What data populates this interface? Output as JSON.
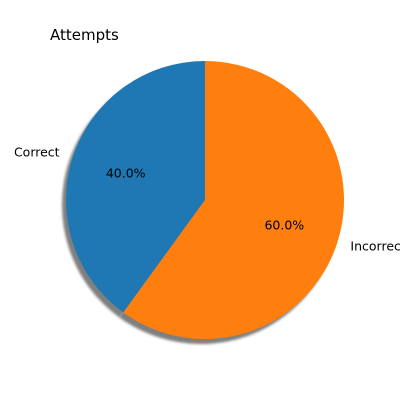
{
  "chart_data": {
    "type": "pie",
    "title": "Attempts",
    "categories": [
      "Correct",
      "Incorrect"
    ],
    "values": [
      40.0,
      60.0
    ],
    "percent_labels": [
      "40.0%",
      "60.0%"
    ],
    "colors": [
      "#1f77b4",
      "#ff7f0e"
    ],
    "start_angle_deg": 90,
    "direction": "counterclockwise",
    "shadow": true,
    "legend": "none"
  }
}
